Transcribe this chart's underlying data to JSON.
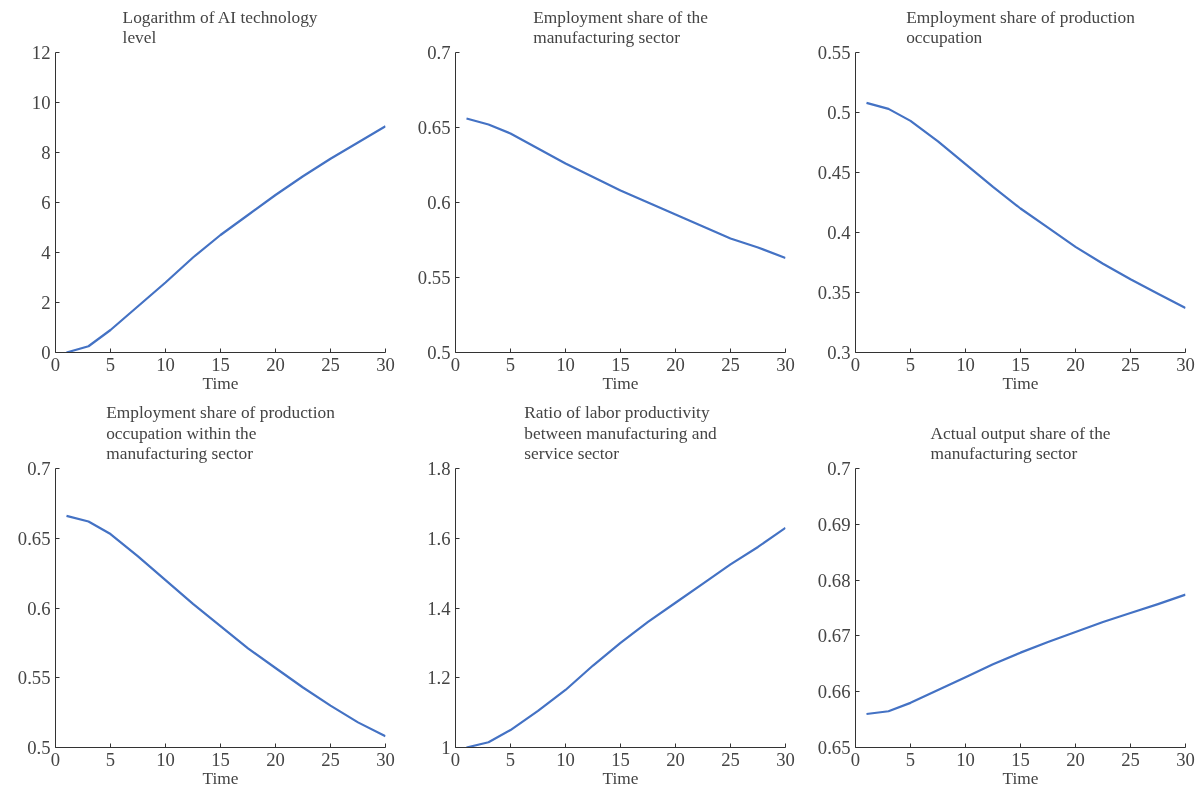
{
  "chart_data": [
    {
      "type": "line",
      "title": "Logarithm of AI technology level",
      "xlabel": "Time",
      "x": [
        1,
        3,
        5,
        7.5,
        10,
        12.5,
        15,
        17.5,
        20,
        22.5,
        25,
        27.5,
        30
      ],
      "series": [
        {
          "color": "#4472c4",
          "values": [
            0,
            0.25,
            0.9,
            1.85,
            2.8,
            3.8,
            4.7,
            5.5,
            6.3,
            7.05,
            7.75,
            8.4,
            9.05
          ]
        }
      ],
      "xlim": [
        0,
        30
      ],
      "xticks": [
        0,
        5,
        10,
        15,
        20,
        25,
        30
      ],
      "ylim": [
        0,
        12
      ],
      "yticks": [
        0,
        2,
        4,
        6,
        8,
        10,
        12
      ],
      "grid": false
    },
    {
      "type": "line",
      "title": "Employment share of the manufacturing sector",
      "xlabel": "Time",
      "x": [
        1,
        3,
        5,
        7.5,
        10,
        12.5,
        15,
        17.5,
        20,
        22.5,
        25,
        27.5,
        30
      ],
      "series": [
        {
          "color": "#4472c4",
          "values": [
            0.656,
            0.652,
            0.646,
            0.636,
            0.626,
            0.617,
            0.608,
            0.6,
            0.592,
            0.584,
            0.576,
            0.57,
            0.563
          ]
        }
      ],
      "xlim": [
        0,
        30
      ],
      "xticks": [
        0,
        5,
        10,
        15,
        20,
        25,
        30
      ],
      "ylim": [
        0.5,
        0.7
      ],
      "yticks": [
        0.5,
        0.55,
        0.6,
        0.65,
        0.7
      ],
      "grid": false
    },
    {
      "type": "line",
      "title": "Employment share of production occupation",
      "xlabel": "Time",
      "x": [
        1,
        3,
        5,
        7.5,
        10,
        12.5,
        15,
        17.5,
        20,
        22.5,
        25,
        27.5,
        30
      ],
      "series": [
        {
          "color": "#4472c4",
          "values": [
            0.508,
            0.503,
            0.493,
            0.476,
            0.457,
            0.438,
            0.42,
            0.404,
            0.388,
            0.374,
            0.361,
            0.349,
            0.337
          ]
        }
      ],
      "xlim": [
        0,
        30
      ],
      "xticks": [
        0,
        5,
        10,
        15,
        20,
        25,
        30
      ],
      "ylim": [
        0.3,
        0.55
      ],
      "yticks": [
        0.3,
        0.35,
        0.4,
        0.45,
        0.5,
        0.55
      ],
      "grid": false
    },
    {
      "type": "line",
      "title": "Employment share of production occupation within the manufacturing sector",
      "xlabel": "Time",
      "x": [
        1,
        3,
        5,
        7.5,
        10,
        12.5,
        15,
        17.5,
        20,
        22.5,
        25,
        27.5,
        30
      ],
      "series": [
        {
          "color": "#4472c4",
          "values": [
            0.666,
            0.662,
            0.653,
            0.637,
            0.62,
            0.603,
            0.587,
            0.571,
            0.557,
            0.543,
            0.53,
            0.518,
            0.508
          ]
        }
      ],
      "xlim": [
        0,
        30
      ],
      "xticks": [
        0,
        5,
        10,
        15,
        20,
        25,
        30
      ],
      "ylim": [
        0.5,
        0.7
      ],
      "yticks": [
        0.5,
        0.55,
        0.6,
        0.65,
        0.7
      ],
      "grid": false
    },
    {
      "type": "line",
      "title": "Ratio of labor productivity between manufacturing and service sector",
      "xlabel": "Time",
      "x": [
        1,
        3,
        5,
        7.5,
        10,
        12.5,
        15,
        17.5,
        20,
        22.5,
        25,
        27.5,
        30
      ],
      "series": [
        {
          "color": "#4472c4",
          "values": [
            1.0,
            1.015,
            1.05,
            1.105,
            1.165,
            1.235,
            1.3,
            1.36,
            1.415,
            1.47,
            1.525,
            1.575,
            1.63
          ]
        }
      ],
      "xlim": [
        0,
        30
      ],
      "xticks": [
        0,
        5,
        10,
        15,
        20,
        25,
        30
      ],
      "ylim": [
        1,
        1.8
      ],
      "yticks": [
        1,
        1.2,
        1.4,
        1.6,
        1.8
      ],
      "grid": false
    },
    {
      "type": "line",
      "title": "Actual output share of the manufacturing sector",
      "xlabel": "Time",
      "x": [
        1,
        3,
        5,
        7.5,
        10,
        12.5,
        15,
        17.5,
        20,
        22.5,
        25,
        27.5,
        30
      ],
      "series": [
        {
          "color": "#4472c4",
          "values": [
            0.656,
            0.6565,
            0.658,
            0.6603,
            0.6626,
            0.6649,
            0.667,
            0.6689,
            0.6707,
            0.6725,
            0.6741,
            0.6757,
            0.6774
          ]
        }
      ],
      "xlim": [
        0,
        30
      ],
      "xticks": [
        0,
        5,
        10,
        15,
        20,
        25,
        30
      ],
      "ylim": [
        0.65,
        0.7
      ],
      "yticks": [
        0.65,
        0.66,
        0.67,
        0.68,
        0.69,
        0.7
      ],
      "grid": false
    }
  ]
}
